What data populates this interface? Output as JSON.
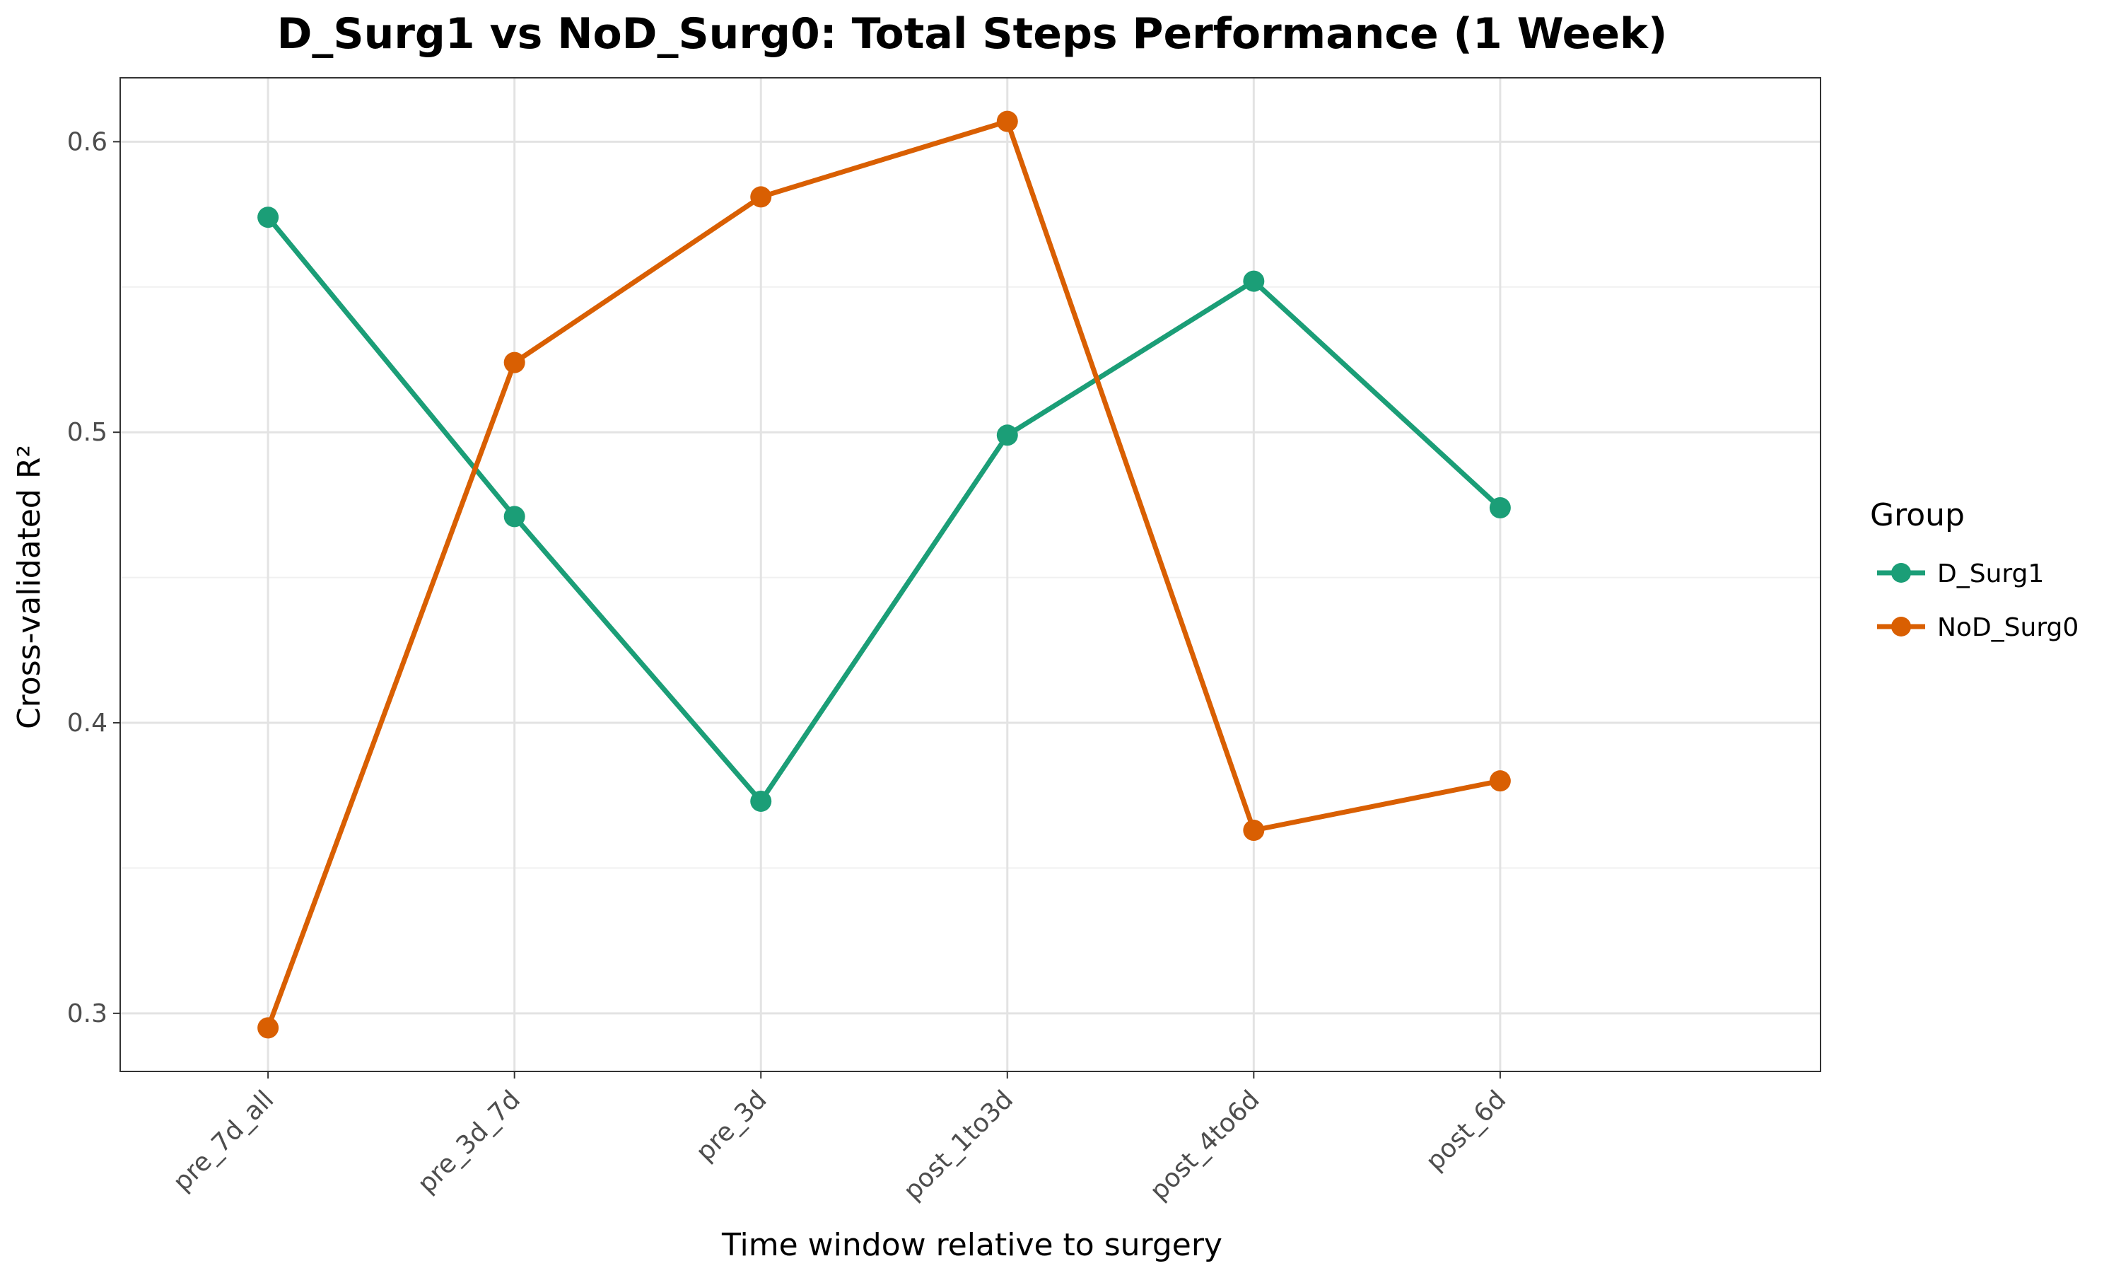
{
  "chart_data": {
    "type": "line",
    "title": "D_Surg1 vs NoD_Surg0: Total Steps Performance (1 Week)",
    "xlabel": "Time window relative to surgery",
    "ylabel": "Cross-validated R²",
    "categories": [
      "pre_7d_all",
      "pre_3d_7d",
      "pre_3d",
      "post_1to3d",
      "post_4to6d",
      "post_6d"
    ],
    "ylim": [
      0.28,
      0.622
    ],
    "yticks": [
      0.3,
      0.4,
      0.5,
      0.6
    ],
    "ytick_labels": [
      "0.3",
      "0.4",
      "0.5",
      "0.6"
    ],
    "grid": true,
    "legend": {
      "title": "Group",
      "position": "right"
    },
    "series": [
      {
        "name": "D_Surg1",
        "color": "#1b9e77",
        "values": [
          0.574,
          0.471,
          0.373,
          0.499,
          0.552,
          0.474
        ]
      },
      {
        "name": "NoD_Surg0",
        "color": "#d95f02",
        "values": [
          0.295,
          0.524,
          0.581,
          0.607,
          0.363,
          0.38
        ]
      }
    ]
  }
}
